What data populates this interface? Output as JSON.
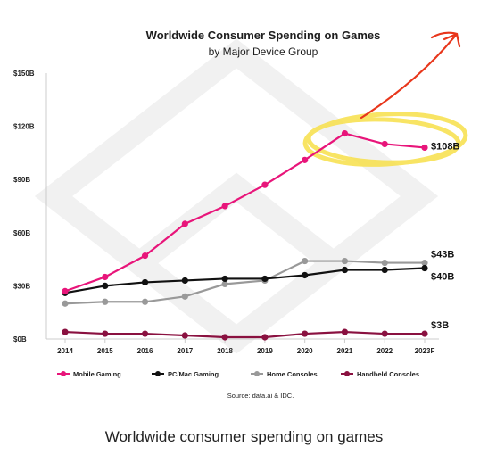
{
  "chart_data": {
    "type": "line",
    "title": "Worldwide Consumer Spending on Games",
    "subtitle": "by Major Device Group",
    "categories": [
      "2014",
      "2015",
      "2016",
      "2017",
      "2018",
      "2019",
      "2020",
      "2021",
      "2022",
      "2023F"
    ],
    "ylim": [
      0,
      150
    ],
    "yticks": [
      {
        "value": 0,
        "label": "$0B"
      },
      {
        "value": 30,
        "label": "$30B"
      },
      {
        "value": 60,
        "label": "$60B"
      },
      {
        "value": 90,
        "label": "$90B"
      },
      {
        "value": 120,
        "label": "$120B"
      },
      {
        "value": 150,
        "label": "$150B"
      }
    ],
    "grid": false,
    "legend_position": "bottom",
    "series": [
      {
        "name": "Mobile Gaming",
        "color": "#e8157a",
        "values": [
          27,
          35,
          47,
          65,
          75,
          87,
          101,
          116,
          110,
          108
        ],
        "end_label": "$108B"
      },
      {
        "name": "PC/Mac Gaming",
        "color": "#111111",
        "values": [
          26,
          30,
          32,
          33,
          34,
          34,
          36,
          39,
          39,
          40
        ],
        "end_label": "$40B"
      },
      {
        "name": "Home Consoles",
        "color": "#999999",
        "values": [
          20,
          21,
          21,
          24,
          31,
          33,
          44,
          44,
          43,
          43
        ],
        "end_label": "$43B"
      },
      {
        "name": "Handheld Consoles",
        "color": "#8a1140",
        "values": [
          4,
          3,
          3,
          2,
          1,
          1,
          3,
          4,
          3,
          3
        ],
        "end_label": "$3B"
      }
    ],
    "source": "Source: data.ai & IDC."
  },
  "caption": "Worldwide consumer spending on games",
  "annotation_colors": {
    "highlight": "#f7e04a",
    "arrow": "#e8361b"
  }
}
